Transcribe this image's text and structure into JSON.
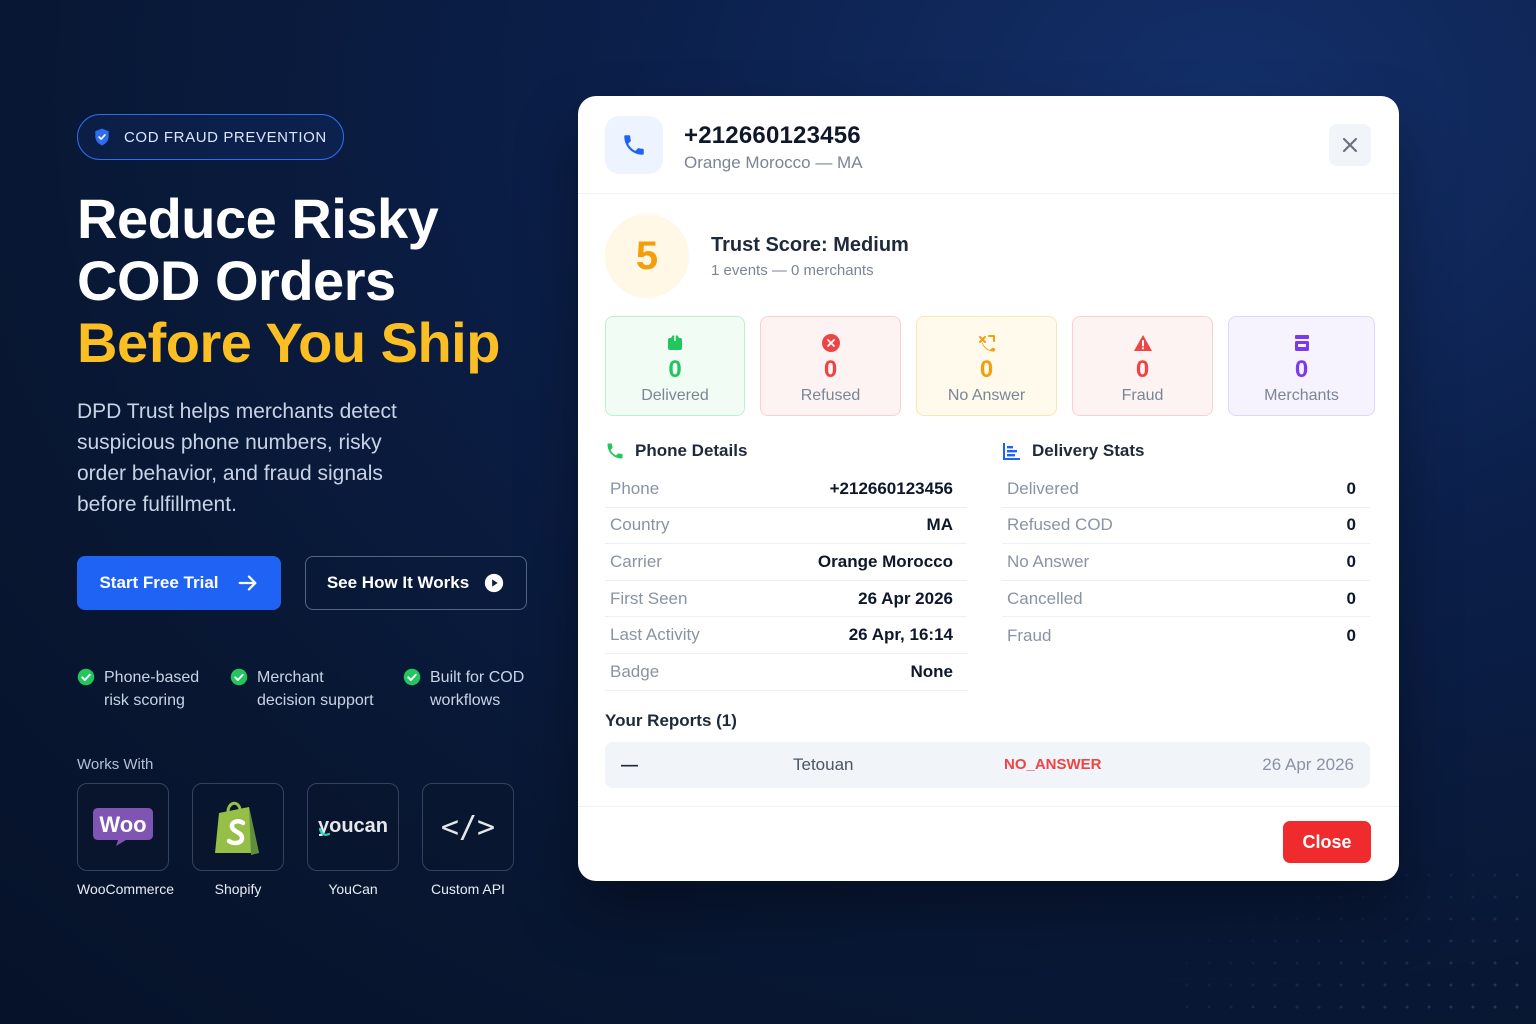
{
  "hero": {
    "badge": "COD FRAUD PREVENTION",
    "headline_line1": "Reduce Risky",
    "headline_line2": "COD Orders",
    "headline_line3": "Before You Ship",
    "description": "DPD Trust helps merchants detect suspicious phone numbers, risky order behavior, and fraud signals before fulfillment.",
    "cta_primary": "Start Free Trial",
    "cta_secondary": "See How It Works",
    "features": [
      {
        "line1": "Phone-based",
        "line2": "risk scoring"
      },
      {
        "line1": "Merchant",
        "line2": "decision support"
      },
      {
        "line1": "Built for COD",
        "line2": "workflows"
      }
    ],
    "works_with_title": "Works With",
    "integrations": [
      "WooCommerce",
      "Shopify",
      "YouCan",
      "Custom API"
    ],
    "integration_logos": {
      "woo": "Woo",
      "youcan": "youcan",
      "api": "</>"
    }
  },
  "modal": {
    "phone": "+212660123456",
    "carrier_line": "Orange Morocco — MA",
    "trust_score": "5",
    "trust_title": "Trust Score: Medium",
    "trust_sub": "1 events — 0 merchants",
    "stats": [
      {
        "value": "0",
        "label": "Delivered",
        "color": "#22c55e"
      },
      {
        "value": "0",
        "label": "Refused",
        "color": "#ef4444"
      },
      {
        "value": "0",
        "label": "No Answer",
        "color": "#f59e0b"
      },
      {
        "value": "0",
        "label": "Fraud",
        "color": "#ef4444"
      },
      {
        "value": "0",
        "label": "Merchants",
        "color": "#7c3aed"
      }
    ],
    "phone_details_title": "Phone Details",
    "phone_details": [
      {
        "k": "Phone",
        "v": "+212660123456"
      },
      {
        "k": "Country",
        "v": "MA"
      },
      {
        "k": "Carrier",
        "v": "Orange Morocco"
      },
      {
        "k": "First Seen",
        "v": "26 Apr 2026"
      },
      {
        "k": "Last Activity",
        "v": "26 Apr, 16:14"
      },
      {
        "k": "Badge",
        "v": "None"
      }
    ],
    "delivery_stats_title": "Delivery Stats",
    "delivery_stats": [
      {
        "k": "Delivered",
        "v": "0"
      },
      {
        "k": "Refused COD",
        "v": "0"
      },
      {
        "k": "No Answer",
        "v": "0"
      },
      {
        "k": "Cancelled",
        "v": "0"
      },
      {
        "k": "Fraud",
        "v": "0"
      }
    ],
    "reports_title": "Your Reports (1)",
    "report": {
      "dash": "—",
      "city": "Tetouan",
      "status": "NO_ANSWER",
      "date": "26 Apr 2026"
    },
    "close_label": "Close"
  },
  "colors": {
    "accent_blue": "#1f63f5",
    "headline_yellow": "#fbbf24",
    "danger_red": "#ef2b2d",
    "success_green": "#22c55e"
  }
}
